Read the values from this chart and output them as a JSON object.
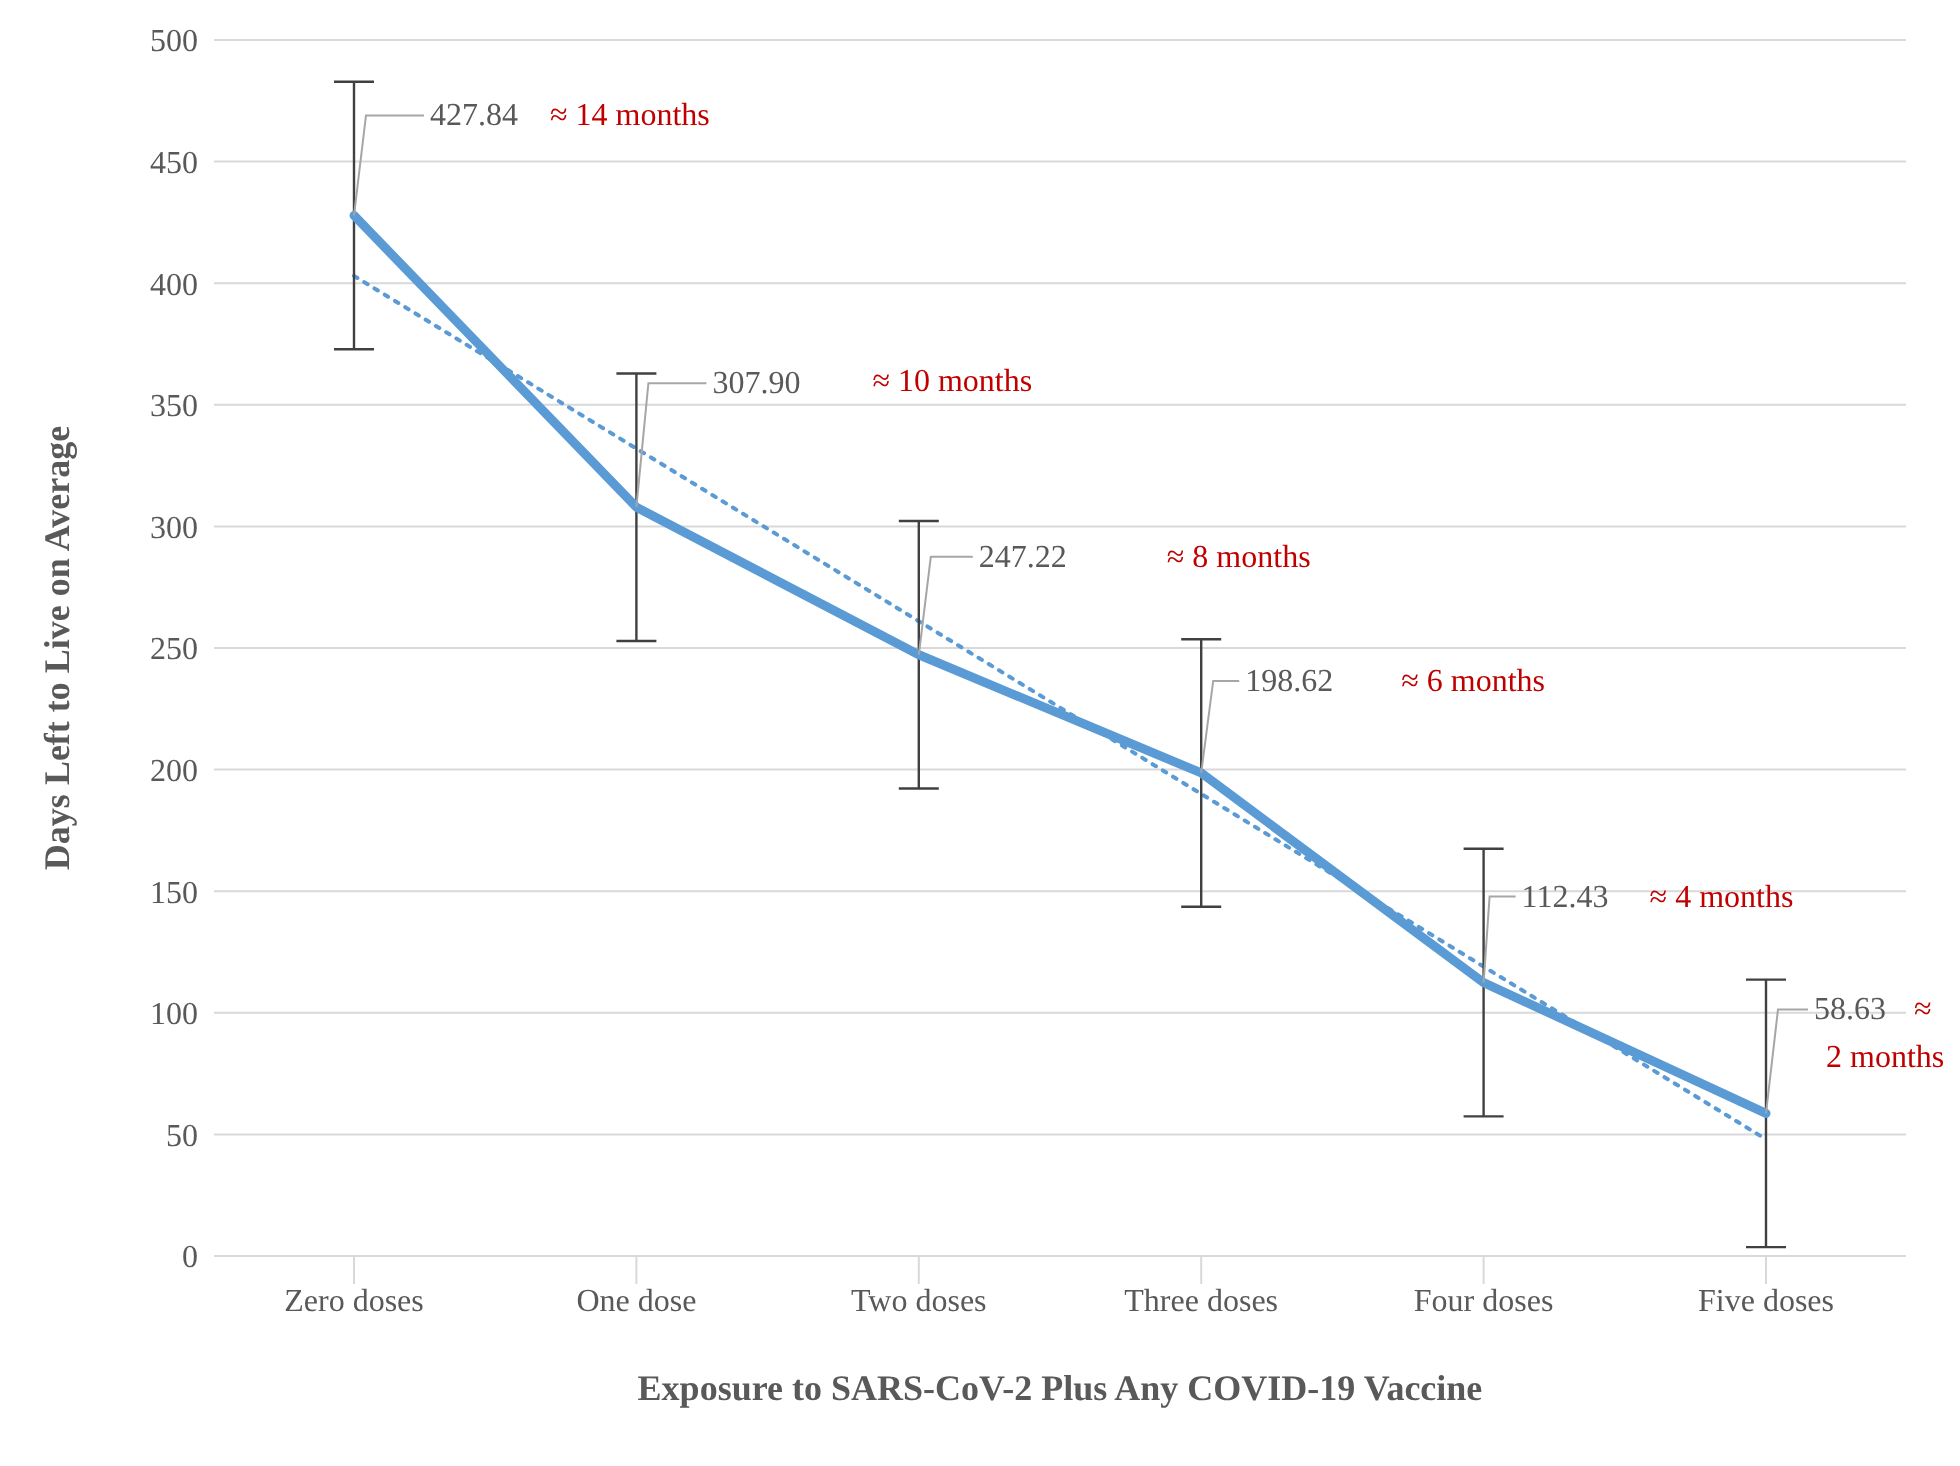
{
  "chart_data": {
    "type": "line",
    "xlabel": "Exposure to SARS-CoV-2 Plus Any COVID-19 Vaccine",
    "ylabel": "Days Left to Live on Average",
    "categories": [
      "Zero doses",
      "One dose",
      "Two doses",
      "Three doses",
      "Four doses",
      "Five doses"
    ],
    "series": [
      {
        "color": "#5b9bd5",
        "values": [
          427.84,
          307.9,
          247.22,
          198.62,
          112.43,
          58.63
        ],
        "errors": [
          55,
          55,
          55,
          55,
          55,
          55
        ],
        "value_labels": [
          "427.84",
          "307.90",
          "247.22",
          "198.62",
          "112.43",
          "58.63"
        ]
      },
      {
        "type": "line",
        "color": "#5b9bd5",
        "line_style": "dotted",
        "values": [
          403,
          332,
          261,
          190,
          119,
          48
        ]
      }
    ],
    "ylim": [
      0,
      500
    ],
    "yticks": [
      0,
      50,
      100,
      150,
      200,
      250,
      300,
      350,
      400,
      450,
      500
    ],
    "grid": "y",
    "legend": false,
    "marker": "none",
    "line_style": "solid",
    "annotations": [
      "≈ 14 months",
      "≈ 10 months",
      "≈ 8 months",
      "≈ 6 months",
      "≈ 4 months",
      {
        "text": "≈ 2 months",
        "x": "Five doses",
        "y": 58.63
      }
    ]
  }
}
